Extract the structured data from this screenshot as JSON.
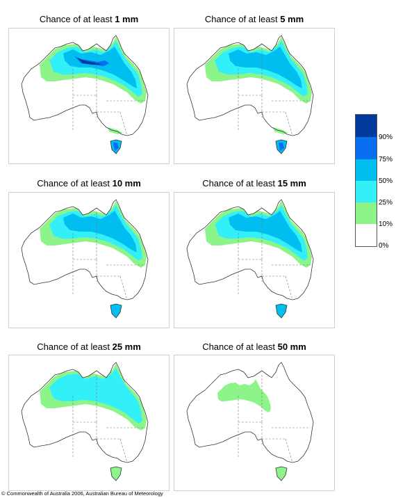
{
  "legend": {
    "colors": [
      "#003a9c",
      "#0a6ef0",
      "#00bff0",
      "#33f0f8",
      "#8df48a",
      "#ffffff"
    ],
    "labels": [
      "90%",
      "75%",
      "50%",
      "25%",
      "10%",
      "0%"
    ]
  },
  "panels": [
    {
      "title_prefix": "Chance of at least ",
      "amount": "1 mm",
      "level": 5
    },
    {
      "title_prefix": "Chance of at least ",
      "amount": "5 mm",
      "level": 4
    },
    {
      "title_prefix": "Chance of at least ",
      "amount": "10 mm",
      "level": 3
    },
    {
      "title_prefix": "Chance of at least ",
      "amount": "15 mm",
      "level": 3
    },
    {
      "title_prefix": "Chance of at least ",
      "amount": "25 mm",
      "level": 2
    },
    {
      "title_prefix": "Chance of at least ",
      "amount": "50 mm",
      "level": 1
    }
  ],
  "copyright": "© Commonwealth of Australia 2006, Australian Bureau of Meteorology"
}
